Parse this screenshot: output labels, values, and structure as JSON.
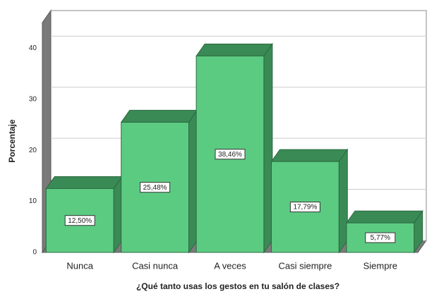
{
  "chart_data": {
    "type": "bar",
    "xlabel": "¿Qué tanto usas los gestos en tu salón de clases?",
    "ylabel": "Porcentaje",
    "categories": [
      "Nunca",
      "Casi nunca",
      "A veces",
      "Casi siempre",
      "Siempre"
    ],
    "values": [
      12.5,
      25.48,
      38.46,
      17.79,
      5.77
    ],
    "value_labels": [
      "12,50%",
      "25,48%",
      "38,46%",
      "17,79%",
      "5,77%"
    ],
    "color": "#5ccb82",
    "ylim": [
      0,
      45
    ],
    "yticks": [
      0,
      10,
      20,
      30,
      40
    ],
    "grid": true
  }
}
